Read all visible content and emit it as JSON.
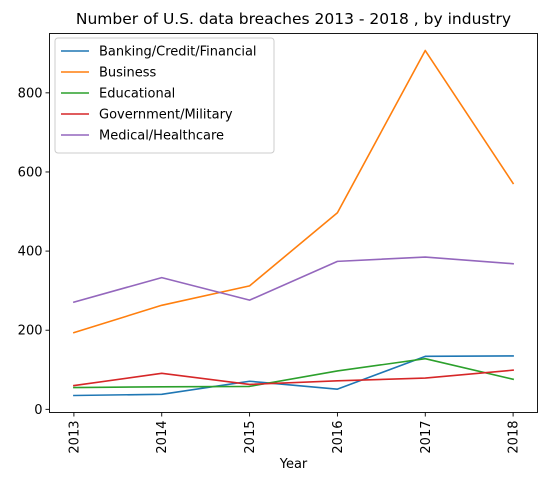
{
  "chart_data": {
    "type": "line",
    "title": "Number of U.S. data breaches 2013 - 2018 , by industry",
    "xlabel": "Year",
    "ylabel": "",
    "categories": [
      "2013",
      "2014",
      "2015",
      "2016",
      "2017",
      "2018"
    ],
    "ylim": [
      -8,
      950
    ],
    "yticks": [
      0,
      200,
      400,
      600,
      800
    ],
    "grid": false,
    "legend_position": "top-left",
    "series": [
      {
        "name": "Banking/Credit/Financial",
        "color": "#1f77b4",
        "values": [
          35,
          38,
          71,
          51,
          134,
          135
        ]
      },
      {
        "name": "Business",
        "color": "#ff7f0e",
        "values": [
          194,
          263,
          312,
          497,
          907,
          571
        ]
      },
      {
        "name": "Educational",
        "color": "#2ca02c",
        "values": [
          55,
          57,
          58,
          97,
          128,
          76
        ]
      },
      {
        "name": "Government/Military",
        "color": "#d62728",
        "values": [
          60,
          91,
          63,
          72,
          79,
          99
        ]
      },
      {
        "name": "Medical/Healthcare",
        "color": "#9467bd",
        "values": [
          271,
          333,
          276,
          374,
          385,
          368
        ]
      }
    ]
  }
}
